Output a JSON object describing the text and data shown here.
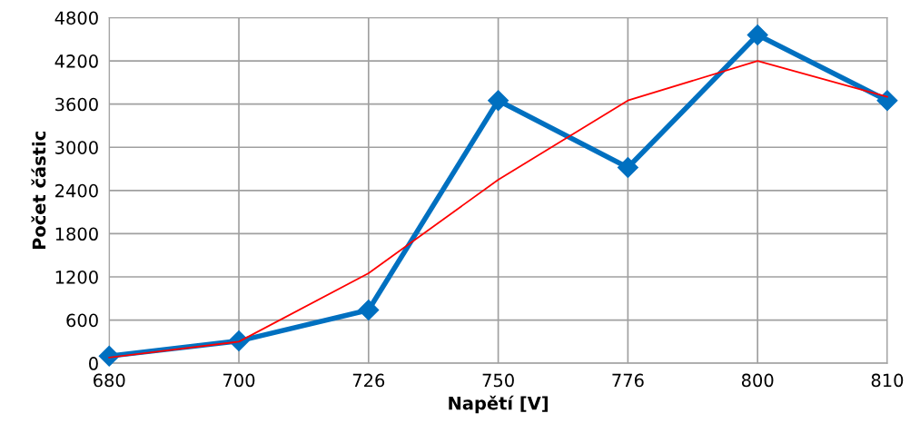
{
  "chart_data": {
    "type": "line",
    "xlabel": "Napětí [V]",
    "ylabel": "Počet částic",
    "categories": [
      "680",
      "700",
      "726",
      "750",
      "776",
      "800",
      "810"
    ],
    "series": [
      {
        "color": "#0070c0",
        "values": [
          100,
          310,
          740,
          3650,
          2720,
          4560,
          3650
        ],
        "marker": "diamond"
      },
      {
        "color": "#ff0000",
        "values": [
          80,
          300,
          1250,
          2550,
          3650,
          4200,
          3700
        ],
        "marker": "none"
      }
    ],
    "ylim": [
      0,
      4800
    ],
    "yticks": [
      0,
      600,
      1200,
      1800,
      2400,
      3000,
      3600,
      4200,
      4800
    ],
    "grid": true,
    "legend": false
  }
}
